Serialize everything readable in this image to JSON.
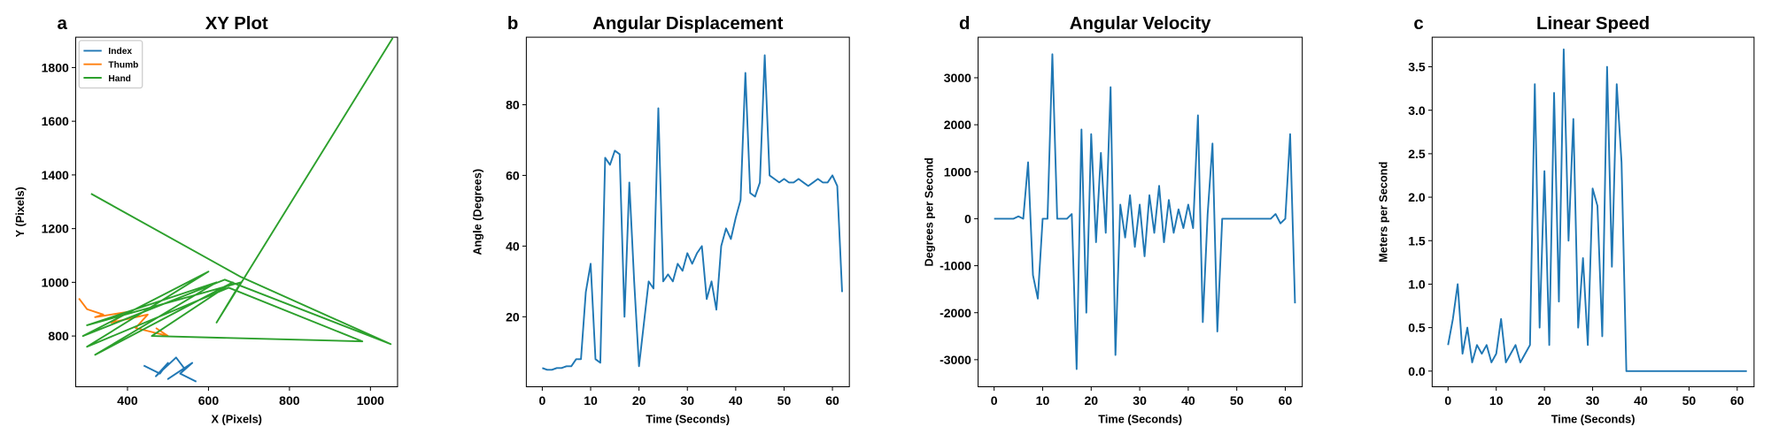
{
  "chart_data": [
    {
      "type": "xy",
      "panel_label": "a",
      "title": "XY Plot",
      "x_label": "X (Pixels)",
      "y_label": "Y (Pixels)",
      "xlim": [
        272,
        1067
      ],
      "ylim": [
        611,
        1913
      ],
      "xticks": [
        400,
        600,
        800,
        1000
      ],
      "yticks": [
        800,
        1000,
        1200,
        1400,
        1600,
        1800
      ],
      "legend": "upper left",
      "series": [
        {
          "name": "Index",
          "color": "#1f77b4",
          "x": [
            440,
            480,
            500,
            470,
            520,
            540,
            500,
            560,
            530,
            570
          ],
          "values": [
            690,
            660,
            700,
            650,
            720,
            680,
            640,
            700,
            660,
            630
          ]
        },
        {
          "name": "Thumb",
          "color": "#ff7f0e",
          "x": [
            280,
            300,
            340,
            320,
            400,
            360,
            450,
            420,
            500,
            470
          ],
          "values": [
            940,
            900,
            880,
            870,
            890,
            850,
            880,
            830,
            800,
            830
          ]
        },
        {
          "name": "Hand",
          "color": "#2ca02c",
          "x": [
            310,
            680,
            1050,
            640,
            290,
            600,
            300,
            650,
            980,
            460,
            660,
            320,
            620,
            300,
            680,
            620,
            1055
          ],
          "values": [
            1330,
            1020,
            770,
            1010,
            800,
            1040,
            760,
            980,
            780,
            800,
            1000,
            730,
            1000,
            840,
            1000,
            850,
            1910
          ]
        }
      ]
    },
    {
      "type": "line",
      "panel_label": "b",
      "title": "Angular Displacement",
      "x_label": "Time (Seconds)",
      "y_label": "Angle (Degrees)",
      "xlim": [
        -3.3,
        63.5
      ],
      "ylim": [
        0.2,
        99.1
      ],
      "xticks": [
        0,
        10,
        20,
        30,
        40,
        50,
        60
      ],
      "yticks": [
        20,
        40,
        60,
        80
      ],
      "color": "#1f77b4",
      "x": [
        0,
        1,
        2,
        3,
        4,
        5,
        6,
        7,
        8,
        9,
        10,
        11,
        12,
        13,
        14,
        15,
        16,
        17,
        18,
        19,
        20,
        21,
        22,
        23,
        24,
        25,
        26,
        27,
        28,
        29,
        30,
        31,
        32,
        33,
        34,
        35,
        36,
        37,
        38,
        39,
        40,
        41,
        42,
        43,
        44,
        45,
        46,
        47,
        48,
        49,
        50,
        51,
        52,
        53,
        54,
        55,
        56,
        57,
        58,
        59,
        60,
        61,
        62
      ],
      "values": [
        5.5,
        5,
        5,
        5.5,
        5.5,
        6,
        6,
        8,
        8,
        27,
        35,
        8,
        7,
        65,
        63,
        67,
        66,
        20,
        58,
        30,
        6,
        18,
        30,
        28,
        79,
        30,
        32,
        30,
        35,
        33,
        38,
        35,
        38,
        40,
        25,
        30,
        22,
        40,
        45,
        42,
        48,
        53,
        89,
        55,
        54,
        58,
        94,
        60,
        59,
        58,
        59,
        58,
        58,
        59,
        58,
        57,
        58,
        59,
        58,
        58,
        60,
        57,
        27
      ]
    },
    {
      "type": "line",
      "panel_label": "d",
      "title": "Angular Velocity",
      "x_label": "Time (Seconds)",
      "y_label": "Degrees per Second",
      "xlim": [
        -3.3,
        63.5
      ],
      "ylim": [
        -3576,
        3863
      ],
      "xticks": [
        0,
        10,
        20,
        30,
        40,
        50,
        60
      ],
      "yticks": [
        -3000,
        -2000,
        -1000,
        0,
        1000,
        2000,
        3000
      ],
      "color": "#1f77b4",
      "x": [
        0,
        1,
        2,
        3,
        4,
        5,
        6,
        7,
        8,
        9,
        10,
        11,
        12,
        13,
        14,
        15,
        16,
        17,
        18,
        19,
        20,
        21,
        22,
        23,
        24,
        25,
        26,
        27,
        28,
        29,
        30,
        31,
        32,
        33,
        34,
        35,
        36,
        37,
        38,
        39,
        40,
        41,
        42,
        43,
        44,
        45,
        46,
        47,
        48,
        49,
        50,
        51,
        52,
        53,
        54,
        55,
        56,
        57,
        58,
        59,
        60,
        61,
        62
      ],
      "values": [
        0,
        0,
        0,
        0,
        0,
        50,
        0,
        1200,
        -1200,
        -1700,
        0,
        0,
        3500,
        0,
        0,
        0,
        100,
        -3200,
        1900,
        -2000,
        1800,
        -500,
        1400,
        -300,
        2800,
        -2900,
        300,
        -400,
        500,
        -600,
        300,
        -800,
        500,
        -300,
        700,
        -500,
        400,
        -300,
        200,
        -200,
        300,
        -200,
        2200,
        -2200,
        100,
        1600,
        -2400,
        0,
        0,
        0,
        0,
        0,
        0,
        0,
        0,
        0,
        0,
        0,
        100,
        -100,
        0,
        1800,
        -1800
      ]
    },
    {
      "type": "line",
      "panel_label": "c",
      "title": "Linear Speed",
      "x_label": "Time (Seconds)",
      "y_label": "Meters per Second",
      "xlim": [
        -3.3,
        63.5
      ],
      "ylim": [
        -0.18,
        3.84
      ],
      "xticks": [
        0,
        10,
        20,
        30,
        40,
        50,
        60
      ],
      "yticks": [
        {
          "value": 0,
          "label": "0.0"
        },
        0.5,
        {
          "value": 1,
          "label": "1.0"
        },
        1.5,
        {
          "value": 2,
          "label": "2.0"
        },
        2.5,
        {
          "value": 3,
          "label": "3.0"
        },
        3.5
      ],
      "color": "#1f77b4",
      "x": [
        0,
        1,
        2,
        3,
        4,
        5,
        6,
        7,
        8,
        9,
        10,
        11,
        12,
        13,
        14,
        15,
        16,
        17,
        18,
        19,
        20,
        21,
        22,
        23,
        24,
        25,
        26,
        27,
        28,
        29,
        30,
        31,
        32,
        33,
        34,
        35,
        36,
        37,
        38,
        39,
        40,
        41,
        42,
        43,
        44,
        45,
        46,
        47,
        48,
        49,
        50,
        51,
        52,
        53,
        54,
        55,
        56,
        57,
        58,
        59,
        60,
        61,
        62
      ],
      "values": [
        0.3,
        0.6,
        1.0,
        0.2,
        0.5,
        0.1,
        0.3,
        0.2,
        0.3,
        0.1,
        0.2,
        0.6,
        0.1,
        0.2,
        0.3,
        0.1,
        0.2,
        0.3,
        3.3,
        0.5,
        2.3,
        0.3,
        3.2,
        0.8,
        3.7,
        1.5,
        2.9,
        0.5,
        1.3,
        0.3,
        2.1,
        1.9,
        0.4,
        3.5,
        1.2,
        3.3,
        2.4,
        0,
        0,
        0,
        0,
        0,
        0,
        0,
        0,
        0,
        0,
        0,
        0,
        0,
        0,
        0,
        0,
        0,
        0,
        0,
        0,
        0,
        0,
        0,
        0,
        0,
        0
      ]
    }
  ]
}
